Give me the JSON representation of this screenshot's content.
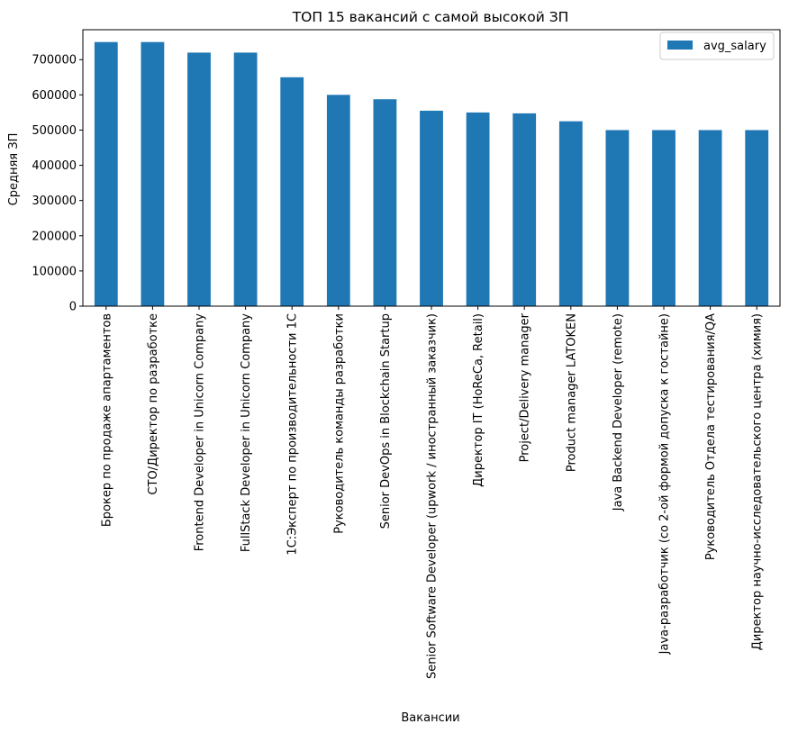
{
  "chart_data": {
    "type": "bar",
    "title": "ТОП 15 вакансий с самой высокой ЗП",
    "xlabel": "Вакансии",
    "ylabel": "Средняя ЗП",
    "ylim": [
      0,
      785000
    ],
    "yticks": [
      0,
      100000,
      200000,
      300000,
      400000,
      500000,
      600000,
      700000
    ],
    "ytick_labels": [
      "0",
      "100000",
      "200000",
      "300000",
      "400000",
      "500000",
      "600000",
      "700000"
    ],
    "grid": false,
    "legend_position": "top-right",
    "bar_color": "#1f77b4",
    "categories": [
      "Брокер по продаже апартаментов",
      "CTO/Директор по разработке",
      "Frontend Developer in Unicorn Company",
      "FullStack Developer in Unicorn Company",
      "1С:Эксперт по производительности 1С",
      "Руководитель команды разработки",
      "Senior DevOps in Blockchain Startup",
      "Senior Software Developer (upwork / иностранный заказчик)",
      "Директор IT (HoReCa, Retail)",
      "Project/Delivery manager",
      "Product manager LATOKEN",
      "Java Backend Developer (remote)",
      "Java-разработчик (со 2-ой формой допуска к гостайне)",
      "Руководитель Отдела тестирования/QA",
      "Директор научно-исследовательского центра (химия)"
    ],
    "series": [
      {
        "name": "avg_salary",
        "values": [
          750000,
          750000,
          720000,
          720000,
          650000,
          600000,
          587500,
          555000,
          550000,
          547500,
          525000,
          500000,
          500000,
          500000,
          500000
        ]
      }
    ]
  }
}
